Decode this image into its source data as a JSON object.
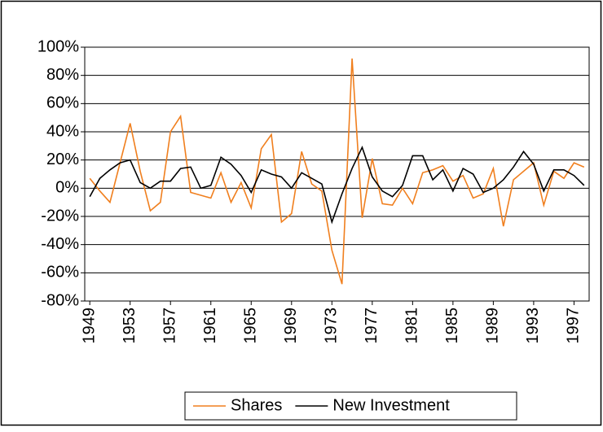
{
  "chart_data": {
    "type": "line",
    "x": [
      1949,
      1950,
      1951,
      1952,
      1953,
      1954,
      1955,
      1956,
      1957,
      1958,
      1959,
      1960,
      1961,
      1962,
      1963,
      1964,
      1965,
      1966,
      1967,
      1968,
      1969,
      1970,
      1971,
      1972,
      1973,
      1974,
      1975,
      1976,
      1977,
      1978,
      1979,
      1980,
      1981,
      1982,
      1983,
      1984,
      1985,
      1986,
      1987,
      1988,
      1989,
      1990,
      1991,
      1992,
      1993,
      1994,
      1995,
      1996,
      1997,
      1998
    ],
    "series": [
      {
        "name": "Shares",
        "color": "#f07f1e",
        "values": [
          7,
          -2,
          -10,
          18,
          46,
          12,
          -16,
          -10,
          40,
          51,
          -3,
          -5,
          -7,
          11,
          -10,
          4,
          -14,
          28,
          38,
          -24,
          -18,
          26,
          3,
          -2,
          -44,
          -68,
          92,
          -21,
          21,
          -11,
          -12,
          0,
          -11,
          11,
          13,
          16,
          5,
          9,
          -7,
          -4,
          14,
          -27,
          6,
          12,
          18,
          -12,
          12,
          7,
          18,
          15
        ]
      },
      {
        "name": "New Investment",
        "color": "#000000",
        "values": [
          -6,
          7,
          13,
          18,
          20,
          4,
          0,
          5,
          5,
          14,
          15,
          0,
          2,
          22,
          17,
          9,
          -3,
          13,
          10,
          8,
          0,
          11,
          7,
          3,
          -24,
          -4,
          14,
          29,
          8,
          -2,
          -6,
          2,
          23,
          23,
          6,
          13,
          -2,
          14,
          10,
          -3,
          0,
          6,
          15,
          26,
          17,
          -2,
          13,
          13,
          9,
          2
        ]
      }
    ],
    "xlim": [
      1948.5,
      1998.5
    ],
    "xticks": [
      1949,
      1953,
      1957,
      1961,
      1965,
      1969,
      1973,
      1977,
      1981,
      1985,
      1989,
      1993,
      1997
    ],
    "ylim": [
      -80,
      100
    ],
    "yticks": [
      {
        "value": -80,
        "label": "-80%"
      },
      {
        "value": -60,
        "label": "-60%"
      },
      {
        "value": -40,
        "label": "-40%"
      },
      {
        "value": -20,
        "label": "-20%"
      },
      {
        "value": 0,
        "label": "0%"
      },
      {
        "value": 20,
        "label": "20%"
      },
      {
        "value": 40,
        "label": "40%"
      },
      {
        "value": 60,
        "label": "60%"
      },
      {
        "value": 80,
        "label": "80%"
      },
      {
        "value": 100,
        "label": "100%"
      }
    ],
    "grid": true,
    "legend": "bottom"
  }
}
